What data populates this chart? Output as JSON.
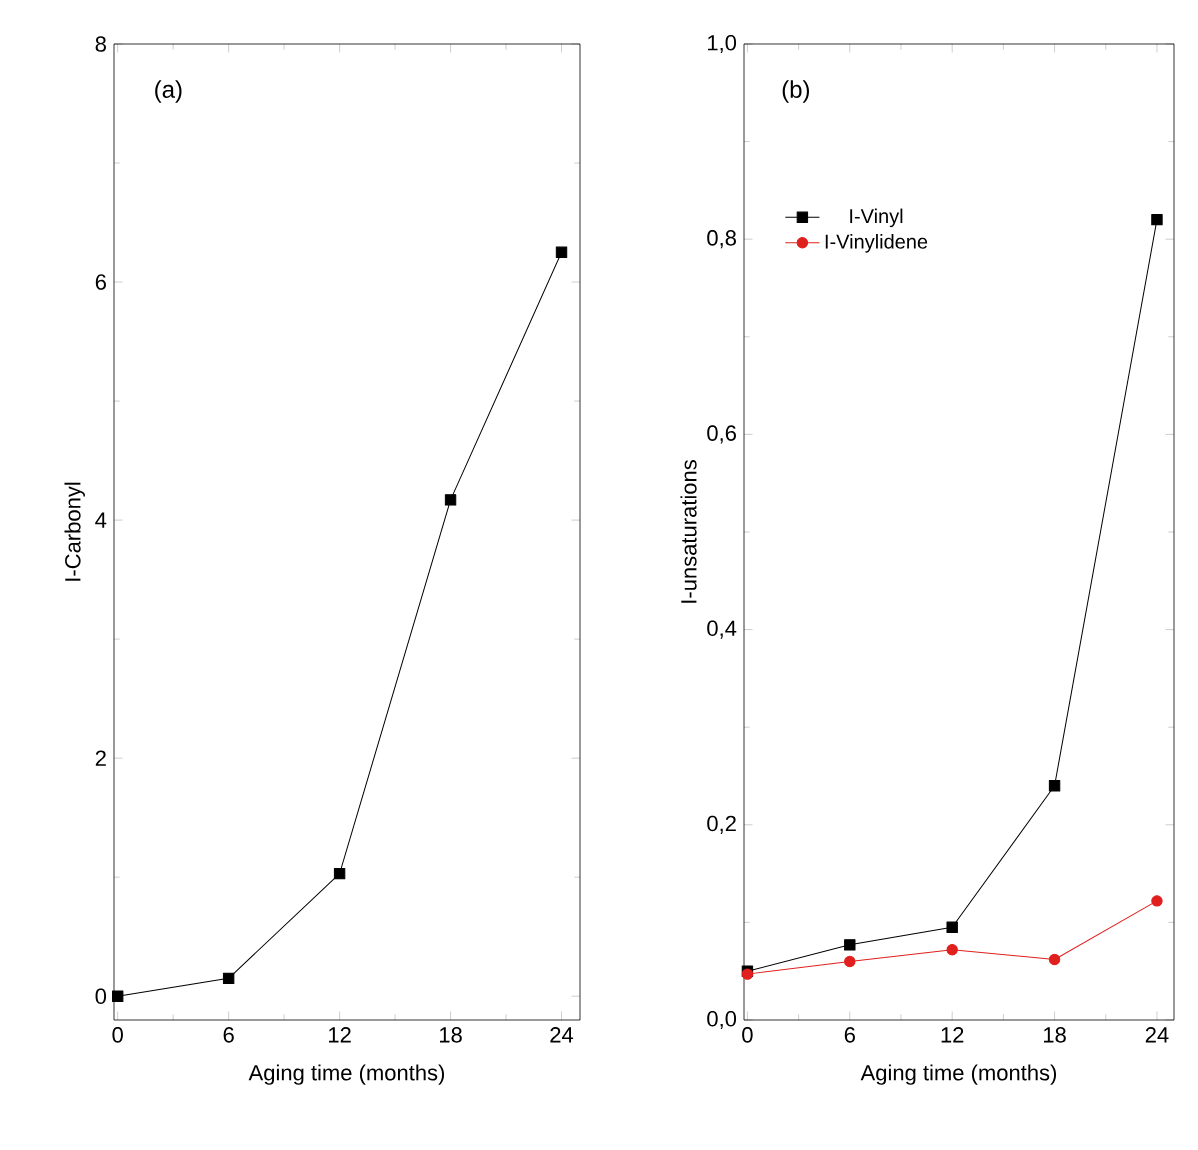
{
  "chart_data": [
    {
      "type": "line",
      "xlabel": "Aging time (months)",
      "ylabel": "I-Carbonyl",
      "annotations": [
        "(a)"
      ],
      "marker": "square",
      "line_style": "solid",
      "grid": false,
      "x": [
        0,
        6,
        12,
        18,
        24
      ],
      "xlim": [
        -0.2,
        25
      ],
      "xticks": [
        0,
        6,
        12,
        18,
        24
      ],
      "ylim": [
        -0.2,
        8
      ],
      "yticks": [
        0,
        2,
        4,
        6,
        8
      ],
      "series": [
        {
          "color": "#000000",
          "values": [
            0.0,
            0.15,
            1.03,
            4.17,
            6.25
          ]
        }
      ]
    },
    {
      "type": "line",
      "xlabel": "Aging time (months)",
      "ylabel": "I-unsaturations",
      "annotations": [
        "(b)"
      ],
      "line_style": "solid",
      "grid": false,
      "legend": "top left",
      "x": [
        0,
        6,
        12,
        18,
        24
      ],
      "xlim": [
        -0.2,
        25
      ],
      "xticks": [
        0,
        6,
        12,
        18,
        24
      ],
      "ylim": [
        0,
        1
      ],
      "yticks": [
        {
          "value": 0,
          "label": "0,0"
        },
        {
          "value": 0.2,
          "label": "0,2"
        },
        {
          "value": 0.4,
          "label": "0,4"
        },
        {
          "value": 0.6,
          "label": "0,6"
        },
        {
          "value": 0.8,
          "label": "0,8"
        },
        {
          "value": 1,
          "label": "1,0"
        }
      ],
      "series": [
        {
          "name": "I-Vinyl",
          "color": "#000000",
          "marker": "square",
          "values": [
            0.05,
            0.077,
            0.095,
            0.24,
            0.82
          ]
        },
        {
          "name": "I-Vinylidene",
          "color": "#e0201e",
          "marker": "circle",
          "values": [
            0.047,
            0.06,
            0.072,
            0.062,
            0.122
          ]
        }
      ]
    }
  ]
}
